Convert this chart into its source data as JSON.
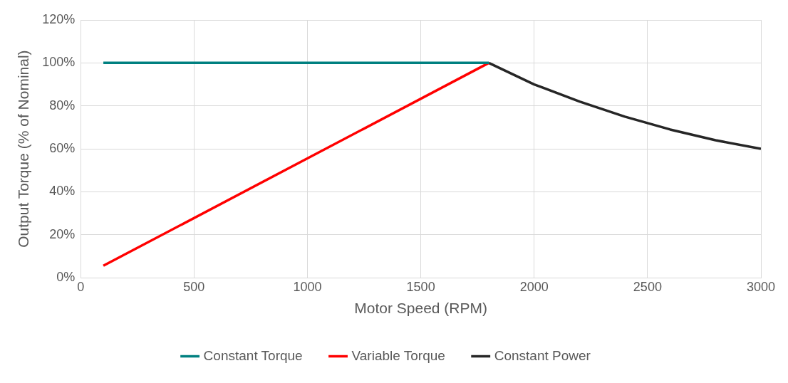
{
  "chart_data": {
    "type": "line",
    "xlabel": "Motor Speed (RPM)",
    "ylabel": "Output Torque (% of Nominal)",
    "xlim": [
      0,
      3000
    ],
    "xticks": [
      0,
      500,
      1000,
      1500,
      2000,
      2500,
      3000
    ],
    "ylim": [
      0,
      120
    ],
    "yticks": [
      {
        "value": 0,
        "label": "0%"
      },
      {
        "value": 20,
        "label": "20%"
      },
      {
        "value": 40,
        "label": "40%"
      },
      {
        "value": 60,
        "label": "60%"
      },
      {
        "value": 80,
        "label": "80%"
      },
      {
        "value": 100,
        "label": "100%"
      },
      {
        "value": 120,
        "label": "120%"
      }
    ],
    "grid": true,
    "legend": "bottom",
    "marker": "none",
    "line_style": "solid",
    "series": [
      {
        "name": "Constant Torque",
        "color": "#008080",
        "x": [
          100,
          1800
        ],
        "values": [
          100,
          100
        ]
      },
      {
        "name": "Variable Torque",
        "color": "#ff0000",
        "x": [
          100,
          1800
        ],
        "values": [
          5.6,
          100
        ]
      },
      {
        "name": "Constant Power",
        "color": "#262626",
        "x": [
          1800,
          2000,
          2200,
          2400,
          2600,
          2800,
          3000
        ],
        "values": [
          100,
          90,
          82,
          75,
          69,
          64,
          60
        ]
      }
    ]
  }
}
